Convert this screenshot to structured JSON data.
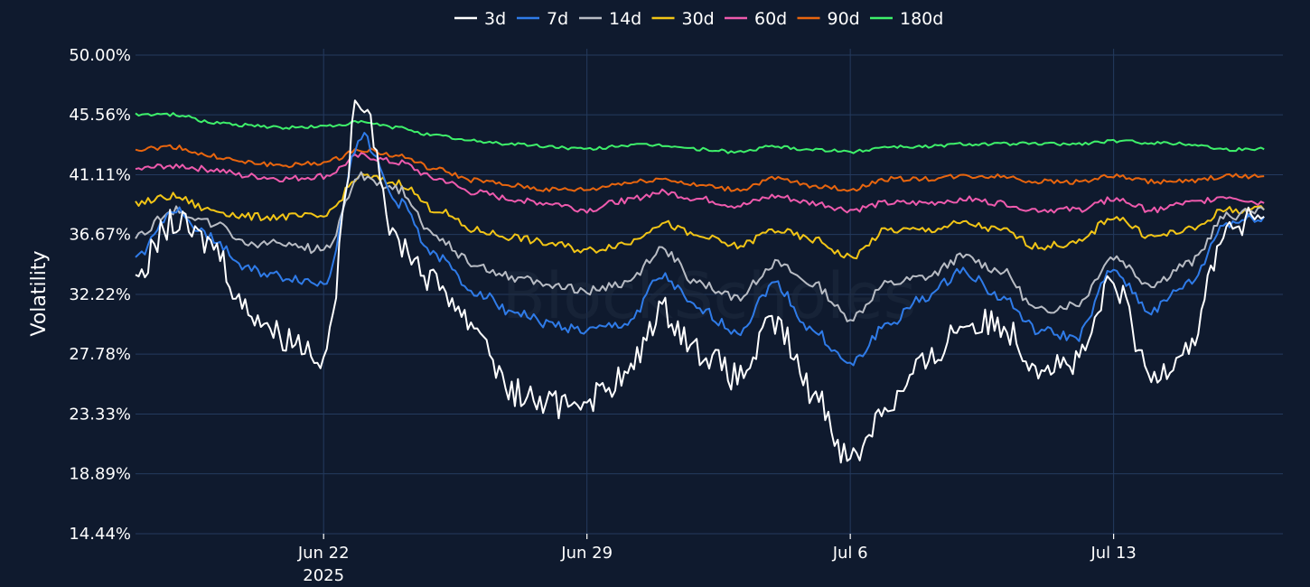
{
  "chart_data": {
    "type": "line",
    "title": "",
    "xlabel": "",
    "ylabel": "Volatility",
    "watermark": "BlockScholes",
    "background": "#0f1a2e",
    "grid": true,
    "legend_position": "top-center",
    "ylim": [
      14.44,
      50.0
    ],
    "yticks": [
      14.44,
      18.89,
      23.33,
      27.78,
      32.22,
      36.67,
      41.11,
      45.56,
      50.0
    ],
    "ytick_labels": [
      "14.44%",
      "18.89%",
      "23.33%",
      "27.78%",
      "32.22%",
      "36.67%",
      "41.11%",
      "45.56%",
      "50.00%"
    ],
    "xlim": [
      "2025-06-17",
      "2025-07-17T12:00"
    ],
    "xticks": [
      {
        "date": "2025-06-22",
        "label": "Jun 22",
        "sublabel": "2025"
      },
      {
        "date": "2025-06-29",
        "label": "Jun 29",
        "sublabel": ""
      },
      {
        "date": "2025-07-06",
        "label": "Jul 6",
        "sublabel": ""
      },
      {
        "date": "2025-07-13",
        "label": "Jul 13",
        "sublabel": ""
      }
    ],
    "x": [
      "2025-06-17",
      "2025-06-18",
      "2025-06-19",
      "2025-06-20",
      "2025-06-21",
      "2025-06-22",
      "2025-06-23",
      "2025-06-24",
      "2025-06-25",
      "2025-06-26",
      "2025-06-27",
      "2025-06-28",
      "2025-06-29",
      "2025-06-30",
      "2025-07-01",
      "2025-07-02",
      "2025-07-03",
      "2025-07-04",
      "2025-07-05",
      "2025-07-06",
      "2025-07-07",
      "2025-07-08",
      "2025-07-09",
      "2025-07-10",
      "2025-07-11",
      "2025-07-12",
      "2025-07-13",
      "2025-07-14",
      "2025-07-15",
      "2025-07-16",
      "2025-07-17"
    ],
    "series": [
      {
        "name": "3d",
        "color": "#ffffff",
        "values": [
          34,
          37.5,
          36,
          31,
          29,
          27.8,
          47,
          36,
          33,
          30,
          25,
          24,
          24.5,
          26,
          31,
          28,
          26,
          30,
          25,
          20,
          24,
          27,
          30,
          30,
          27,
          27,
          33,
          26,
          28.5,
          37,
          38
        ]
      },
      {
        "name": "7d",
        "color": "#2f7be8",
        "values": [
          35,
          38.5,
          36.5,
          34,
          33.5,
          33,
          44,
          39,
          35,
          32.5,
          31,
          30,
          29.5,
          30,
          33.5,
          31,
          29.5,
          33,
          29.5,
          27,
          30,
          32,
          34,
          32,
          29.5,
          29,
          34,
          31,
          33,
          37.5,
          38
        ]
      },
      {
        "name": "14d",
        "color": "#b8bcc4",
        "values": [
          36.5,
          38.5,
          37.5,
          36,
          36,
          35.5,
          41,
          40,
          36.5,
          34.5,
          33.5,
          33,
          32.5,
          33,
          35.5,
          33,
          32,
          34.5,
          33,
          30.5,
          33,
          33.5,
          35,
          34,
          31,
          31.5,
          35,
          33,
          34.5,
          38,
          38.5
        ]
      },
      {
        "name": "30d",
        "color": "#f2c516",
        "values": [
          39,
          39.5,
          38.5,
          38,
          38,
          38,
          41,
          40.5,
          38.5,
          37,
          36.5,
          36,
          35.5,
          36,
          37.5,
          36.5,
          35.8,
          37,
          36.3,
          35,
          37,
          37,
          37.5,
          37,
          35.8,
          36,
          38,
          36.5,
          37,
          38.5,
          38.5
        ]
      },
      {
        "name": "60d",
        "color": "#ee5aad",
        "values": [
          41.5,
          41.8,
          41.5,
          41,
          40.8,
          41,
          42.5,
          42,
          40.8,
          39.8,
          39.3,
          39,
          38.5,
          39.2,
          39.8,
          39.3,
          38.8,
          39.5,
          39,
          38.5,
          39,
          39,
          39.3,
          39,
          38.5,
          38.5,
          39.3,
          38.5,
          39,
          39.5,
          39
        ]
      },
      {
        "name": "90d",
        "color": "#e8650e",
        "values": [
          43,
          43.2,
          42.5,
          42,
          41.8,
          42,
          43,
          42.5,
          41.5,
          40.7,
          40.3,
          40,
          40,
          40.5,
          40.8,
          40.3,
          40,
          40.8,
          40.3,
          40,
          40.8,
          40.8,
          41,
          41,
          40.6,
          40.6,
          41,
          40.6,
          40.6,
          41,
          41
        ]
      },
      {
        "name": "180d",
        "color": "#3ef06a",
        "values": [
          45.6,
          45.6,
          45,
          44.8,
          44.6,
          44.7,
          45,
          44.6,
          44,
          43.6,
          43.4,
          43.2,
          43,
          43.3,
          43.3,
          43,
          42.8,
          43.2,
          43,
          42.8,
          43.2,
          43.2,
          43.4,
          43.4,
          43.4,
          43.4,
          43.6,
          43.5,
          43.4,
          43,
          43
        ]
      }
    ]
  }
}
